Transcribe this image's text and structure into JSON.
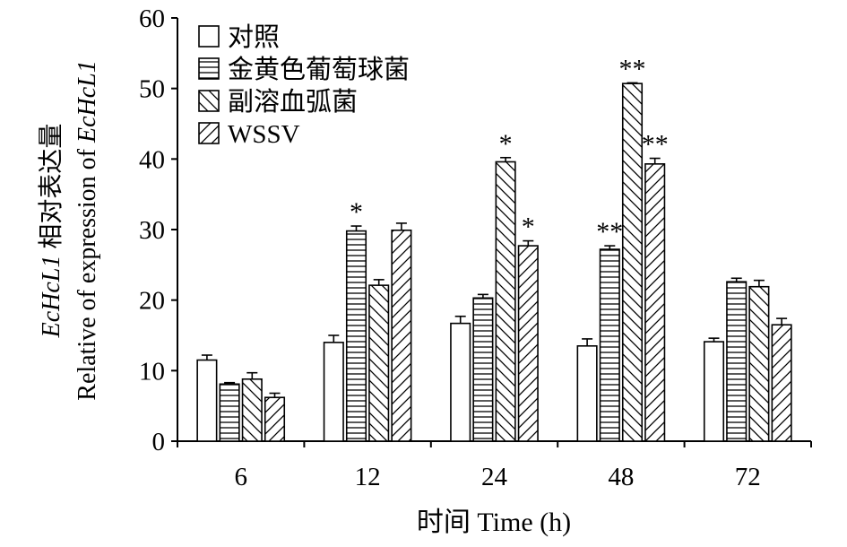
{
  "chart_data": {
    "type": "bar",
    "categories": [
      "6",
      "12",
      "24",
      "48",
      "72"
    ],
    "xlabel": "时间 Time (h)",
    "ylabel_cn_gene": "EcHcL1",
    "ylabel_cn_rest": " 相对表达量",
    "ylabel_en_prefix": "Relative of expression of ",
    "ylabel_en_gene": "EcHcL1",
    "ylim": [
      0,
      60
    ],
    "yticks": [
      "0",
      "10",
      "20",
      "30",
      "40",
      "50",
      "60"
    ],
    "legend_position": "top-left",
    "series": [
      {
        "name": "对照",
        "pattern": "none",
        "values": [
          11.5,
          14.0,
          16.7,
          13.5,
          14.1
        ],
        "errors": [
          0.7,
          1.0,
          1.0,
          1.0,
          0.5
        ],
        "marks": [
          "",
          "",
          "",
          "",
          ""
        ]
      },
      {
        "name": "金黄色葡萄球菌",
        "pattern": "horizontal",
        "values": [
          8.1,
          29.8,
          20.3,
          27.2,
          22.6
        ],
        "errors": [
          0.2,
          0.7,
          0.5,
          0.5,
          0.5
        ],
        "marks": [
          "",
          "*",
          "",
          "**",
          ""
        ]
      },
      {
        "name": "副溶血弧菌",
        "pattern": "back-diagonal",
        "values": [
          8.8,
          22.1,
          39.6,
          50.7,
          21.9
        ],
        "errors": [
          0.9,
          0.8,
          0.6,
          0.1,
          0.9
        ],
        "marks": [
          "",
          "",
          "*",
          "**",
          ""
        ]
      },
      {
        "name": "WSSV",
        "pattern": "forward-diagonal",
        "values": [
          6.2,
          29.9,
          27.7,
          39.3,
          16.5
        ],
        "errors": [
          0.6,
          1.0,
          0.7,
          0.8,
          0.9
        ],
        "marks": [
          "",
          "",
          "*",
          "**",
          ""
        ]
      }
    ]
  }
}
